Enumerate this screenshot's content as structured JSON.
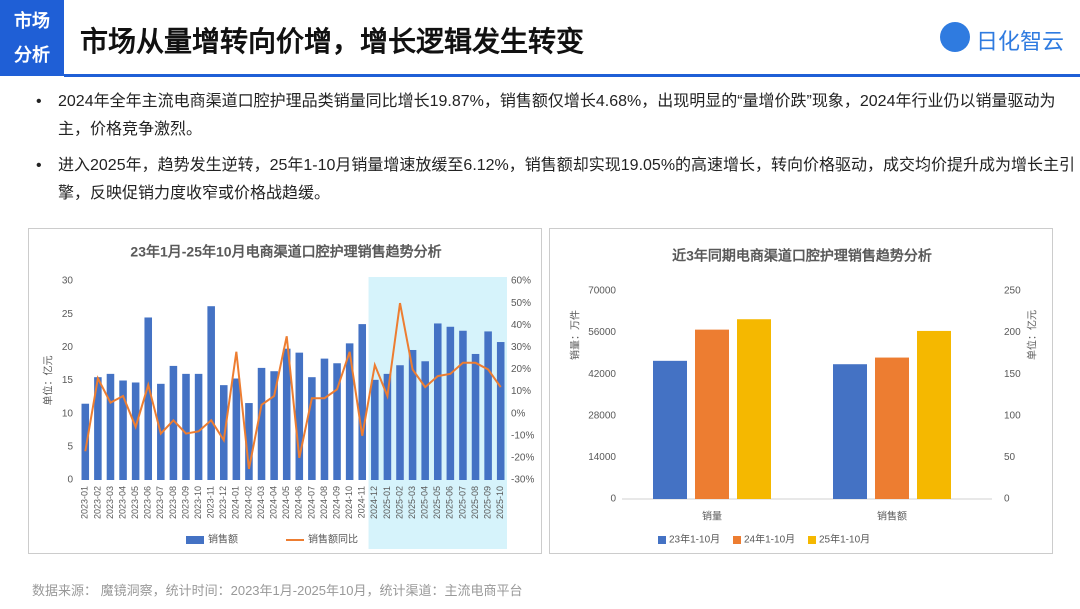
{
  "header": {
    "tag": [
      "市场",
      "分析"
    ],
    "title": "市场从量增转向价增，增长逻辑发生转变",
    "logo": "日化智云"
  },
  "bullets": [
    "2024年全年主流电商渠道口腔护理品类销量同比增长19.87%，销售额仅增长4.68%，出现明显的“量增价跌”现象，2024年行业仍以销量驱动为主，价格竞争激烈。",
    "进入2025年，趋势发生逆转，25年1-10月销量增速放缓至6.12%，销售额却实现19.05%的高速增长，转向价格驱动，成交均价提升成为增长主引擎，反映促销力度收窄或价格战趋缓。"
  ],
  "chart_data": [
    {
      "type": "combo",
      "title": "23年1月-25年10月电商渠道口腔护理销售趋势分析",
      "ylabel": "单位：亿元",
      "categories": [
        "2023-01",
        "2023-02",
        "2023-03",
        "2023-04",
        "2023-05",
        "2023-06",
        "2023-07",
        "2023-08",
        "2023-09",
        "2023-10",
        "2023-11",
        "2023-12",
        "2024-01",
        "2024-02",
        "2024-03",
        "2024-04",
        "2024-05",
        "2024-06",
        "2024-07",
        "2024-08",
        "2024-09",
        "2024-10",
        "2024-11",
        "2024-12",
        "2025-01",
        "2025-02",
        "2025-03",
        "2025-04",
        "2025-05",
        "2025-06",
        "2025-07",
        "2025-08",
        "2025-09",
        "2025-10"
      ],
      "series": [
        {
          "name": "销售额",
          "color": "#4472c4",
          "values": [
            11.5,
            15.5,
            16,
            15,
            14.7,
            24.5,
            14.5,
            17.2,
            16,
            16,
            26.2,
            14.3,
            15.3,
            11.6,
            16.9,
            16.4,
            19.8,
            19.2,
            15.5,
            18.3,
            17.6,
            20.6,
            23.5,
            15.1,
            16,
            17.3,
            19.6,
            17.9,
            23.6,
            23.1,
            22.5,
            19,
            22.4,
            20.8
          ]
        },
        {
          "name": "销售额同比",
          "color": "#ed7d31",
          "axis": "y2",
          "values": [
            -17,
            16,
            5,
            8,
            -6,
            13,
            -9,
            -3,
            -9,
            -8,
            -3,
            -12,
            28,
            -25,
            4,
            8,
            35,
            -20,
            7,
            7,
            11,
            28,
            -10,
            22,
            8,
            50,
            20,
            12,
            17,
            18,
            23,
            23,
            20,
            12
          ]
        }
      ],
      "ylim": [
        0,
        30
      ],
      "yticks": [
        0,
        5,
        10,
        15,
        20,
        25,
        30
      ],
      "y2lim": [
        -30,
        60
      ],
      "y2ticks": [
        {
          "value": -30,
          "label": "-30%"
        },
        {
          "value": -20,
          "label": "-20%"
        },
        {
          "value": -10,
          "label": "-10%"
        },
        {
          "value": 0,
          "label": "0%"
        },
        {
          "value": 10,
          "label": "10%"
        },
        {
          "value": 20,
          "label": "20%"
        },
        {
          "value": 30,
          "label": "30%"
        },
        {
          "value": 40,
          "label": "40%"
        },
        {
          "value": 50,
          "label": "50%"
        },
        {
          "value": 60,
          "label": "60%"
        }
      ],
      "highlight": [
        "2024-12",
        "2025-10"
      ]
    },
    {
      "type": "bar",
      "title": "近3年同期电商渠道口腔护理销售趋势分析",
      "ylabel": "销量：万件",
      "y2label": "单位：亿元",
      "categories": [
        "销量",
        "销售额"
      ],
      "category_axis": [
        "y",
        "y2"
      ],
      "series": [
        {
          "name": "23年1-10月",
          "color": "#4472c4",
          "values": [
            46500,
            162
          ]
        },
        {
          "name": "24年1-10月",
          "color": "#ed7d31",
          "values": [
            57000,
            170
          ]
        },
        {
          "name": "25年1-10月",
          "color": "#f5b800",
          "values": [
            60500,
            202
          ]
        }
      ],
      "ylim": [
        0,
        70000
      ],
      "yticks": [
        0,
        14000,
        28000,
        42000,
        56000,
        70000
      ],
      "y2lim": [
        0,
        250
      ],
      "y2ticks": [
        0,
        50,
        100,
        150,
        200,
        250
      ]
    }
  ],
  "footer": "数据来源：  魔镜洞察，统计时间：2023年1月-2025年10月，统计渠道：主流电商平台"
}
